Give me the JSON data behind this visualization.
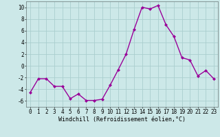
{
  "x": [
    0,
    1,
    2,
    3,
    4,
    5,
    6,
    7,
    8,
    9,
    10,
    11,
    12,
    13,
    14,
    15,
    16,
    17,
    18,
    19,
    20,
    21,
    22,
    23
  ],
  "y": [
    -4.5,
    -2.2,
    -2.2,
    -3.5,
    -3.5,
    -5.6,
    -4.8,
    -5.9,
    -5.9,
    -5.7,
    -3.3,
    -0.7,
    2.0,
    6.2,
    10.0,
    9.7,
    10.3,
    7.0,
    5.0,
    1.4,
    1.0,
    -1.7,
    -0.8,
    -2.2
  ],
  "line_color": "#990099",
  "marker": "D",
  "marker_size": 2.0,
  "linewidth": 1.0,
  "bg_color": "#cce8e8",
  "grid_color": "#aacece",
  "xlabel": "Windchill (Refroidissement éolien,°C)",
  "xlabel_fontsize": 6.0,
  "xlim": [
    -0.5,
    23.5
  ],
  "ylim": [
    -7,
    11
  ],
  "yticks": [
    -6,
    -4,
    -2,
    0,
    2,
    4,
    6,
    8,
    10
  ],
  "xticks": [
    0,
    1,
    2,
    3,
    4,
    5,
    6,
    7,
    8,
    9,
    10,
    11,
    12,
    13,
    14,
    15,
    16,
    17,
    18,
    19,
    20,
    21,
    22,
    23
  ],
  "tick_fontsize": 5.5
}
